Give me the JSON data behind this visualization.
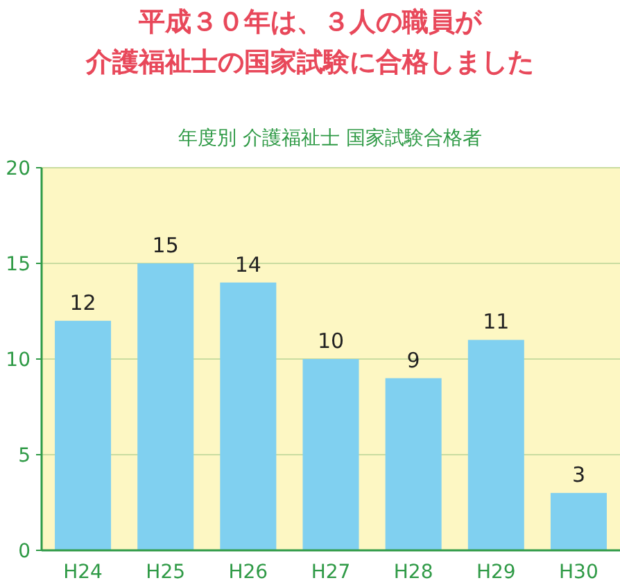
{
  "chart_data": {
    "type": "bar",
    "title": "平成３０年は、３人の職員が",
    "subtitle": "介護福祉士の国家試験に合格しました",
    "annotations": [
      "年度別 介護福祉士 国家試験合格者"
    ],
    "categories": [
      "H24",
      "H25",
      "H26",
      "H27",
      "H28",
      "H29",
      "H30"
    ],
    "series": [
      {
        "color": "#80d0f0",
        "values": [
          12,
          15,
          14,
          10,
          9,
          11,
          3
        ]
      }
    ],
    "ylim": [
      0,
      20
    ],
    "yticks": [
      0,
      5,
      10,
      15,
      20
    ],
    "grid": "y",
    "data_labels": true
  }
}
